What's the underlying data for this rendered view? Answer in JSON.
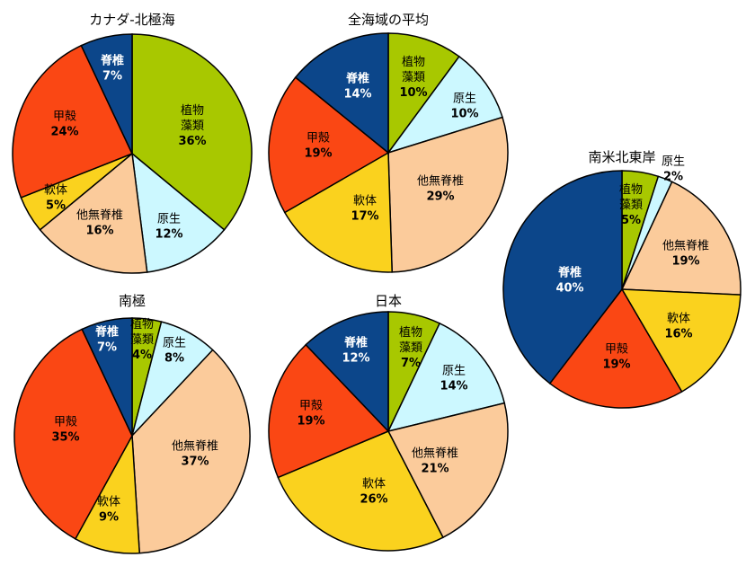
{
  "colors": {
    "植物藻類": "#a8c800",
    "原生": "#ccf8ff",
    "他無脊椎": "#fbcb9b",
    "軟体": "#fad21e",
    "甲殻": "#fa4714",
    "脊椎": "#0c468a"
  },
  "chart_data": [
    {
      "type": "pie",
      "title": "カナダ-北極海",
      "slices": [
        {
          "label": "植物\n藻類",
          "pct": "36%",
          "value": 36
        },
        {
          "label": "原生",
          "pct": "12%",
          "value": 12
        },
        {
          "label": "他無脊椎",
          "pct": "16%",
          "value": 16
        },
        {
          "label": "軟体",
          "pct": "5%",
          "value": 5
        },
        {
          "label": "甲殻",
          "pct": "24%",
          "value": 24
        },
        {
          "label": "脊椎",
          "pct": "7%",
          "value": 7
        }
      ]
    },
    {
      "type": "pie",
      "title": "全海域の平均",
      "slices": [
        {
          "label": "植物\n藻類",
          "pct": "10%",
          "value": 10
        },
        {
          "label": "原生",
          "pct": "10%",
          "value": 10
        },
        {
          "label": "他無脊椎",
          "pct": "29%",
          "value": 29
        },
        {
          "label": "軟体",
          "pct": "17%",
          "value": 17
        },
        {
          "label": "甲殻",
          "pct": "19%",
          "value": 19
        },
        {
          "label": "脊椎",
          "pct": "14%",
          "value": 14
        }
      ]
    },
    {
      "type": "pie",
      "title": "南米北東岸",
      "slices": [
        {
          "label": "植物\n藻類",
          "pct": "5%",
          "value": 5
        },
        {
          "label": "原生",
          "pct": "2%",
          "value": 2
        },
        {
          "label": "他無脊椎",
          "pct": "19%",
          "value": 19
        },
        {
          "label": "軟体",
          "pct": "16%",
          "value": 16
        },
        {
          "label": "甲殻",
          "pct": "19%",
          "value": 19
        },
        {
          "label": "脊椎",
          "pct": "40%",
          "value": 40
        }
      ]
    },
    {
      "type": "pie",
      "title": "南極",
      "slices": [
        {
          "label": "植物\n藻類",
          "pct": "4%",
          "value": 4
        },
        {
          "label": "原生",
          "pct": "8%",
          "value": 8
        },
        {
          "label": "他無脊椎",
          "pct": "37%",
          "value": 37
        },
        {
          "label": "軟体",
          "pct": "9%",
          "value": 9
        },
        {
          "label": "甲殻",
          "pct": "35%",
          "value": 35
        },
        {
          "label": "脊椎",
          "pct": "7%",
          "value": 7
        }
      ]
    },
    {
      "type": "pie",
      "title": "日本",
      "slices": [
        {
          "label": "植物\n藻類",
          "pct": "7%",
          "value": 7
        },
        {
          "label": "原生",
          "pct": "14%",
          "value": 14
        },
        {
          "label": "他無脊椎",
          "pct": "21%",
          "value": 21
        },
        {
          "label": "軟体",
          "pct": "26%",
          "value": 26
        },
        {
          "label": "甲殻",
          "pct": "19%",
          "value": 19
        },
        {
          "label": "脊椎",
          "pct": "12%",
          "value": 12
        }
      ]
    }
  ]
}
